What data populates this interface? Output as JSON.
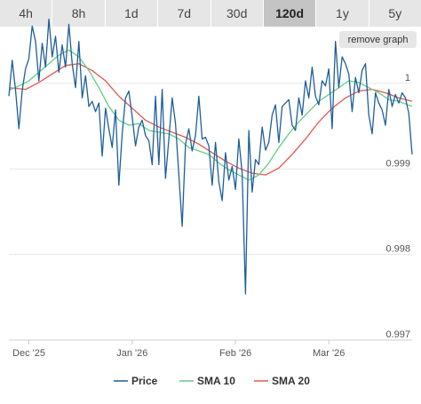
{
  "tabs": [
    {
      "label": "4h",
      "active": false
    },
    {
      "label": "8h",
      "active": false
    },
    {
      "label": "1d",
      "active": false
    },
    {
      "label": "7d",
      "active": false
    },
    {
      "label": "30d",
      "active": false
    },
    {
      "label": "120d",
      "active": true
    },
    {
      "label": "1y",
      "active": false
    },
    {
      "label": "5y",
      "active": false
    }
  ],
  "remove_graph_label": "remove graph",
  "chart_data": {
    "type": "line",
    "title": "",
    "xlabel": "",
    "ylabel": "",
    "ylim": [
      0.997,
      1.0003
    ],
    "yticks": [
      {
        "value": 1.0,
        "label": "1"
      },
      {
        "value": 0.999,
        "label": "0.999"
      },
      {
        "value": 0.998,
        "label": "0.998"
      },
      {
        "value": 0.997,
        "label": "0.997"
      }
    ],
    "x_start": "2025-11-25",
    "x_end": "2026-03-26",
    "xticks": [
      {
        "date": "2025-12-01",
        "label": "Dec '25"
      },
      {
        "date": "2026-01-01",
        "label": "Jan '26"
      },
      {
        "date": "2026-02-01",
        "label": "Feb '26"
      },
      {
        "date": "2026-03-01",
        "label": "Mar '26"
      }
    ],
    "grid": true,
    "legend_position": "bottom",
    "series": [
      {
        "name": "Price",
        "color": "#1f5e9a",
        "points": [
          [
            "2025-11-25",
            0.99985
          ],
          [
            "2025-11-26",
            1.00027
          ],
          [
            "2025-11-27",
            0.99992
          ],
          [
            "2025-11-28",
            0.99947
          ],
          [
            "2025-11-29",
            0.99992
          ],
          [
            "2025-11-30",
            1.00017
          ],
          [
            "2025-12-01",
            1.00029
          ],
          [
            "2025-12-02",
            1.00067
          ],
          [
            "2025-12-03",
            1.00049
          ],
          [
            "2025-12-04",
            1.00003
          ],
          [
            "2025-12-05",
            1.00047
          ],
          [
            "2025-12-06",
            1.00019
          ],
          [
            "2025-12-07",
            1.00075
          ],
          [
            "2025-12-08",
            1.00031
          ],
          [
            "2025-12-09",
            1.00055
          ],
          [
            "2025-12-10",
            1.00013
          ],
          [
            "2025-12-11",
            1.00045
          ],
          [
            "2025-12-12",
            1.00019
          ],
          [
            "2025-12-13",
            1.00069
          ],
          [
            "2025-12-14",
            1.00023
          ],
          [
            "2025-12-15",
            0.99995
          ],
          [
            "2025-12-16",
            1.00049
          ],
          [
            "2025-12-17",
            0.99983
          ],
          [
            "2025-12-18",
            1.00009
          ],
          [
            "2025-12-19",
            0.99973
          ],
          [
            "2025-12-20",
            0.99979
          ],
          [
            "2025-12-21",
            0.99967
          ],
          [
            "2025-12-22",
            0.99977
          ],
          [
            "2025-12-23",
            0.99915
          ],
          [
            "2025-12-24",
            0.99971
          ],
          [
            "2025-12-25",
            0.99947
          ],
          [
            "2025-12-26",
            0.99925
          ],
          [
            "2025-12-27",
            0.99969
          ],
          [
            "2025-12-28",
            0.99881
          ],
          [
            "2025-12-29",
            0.99941
          ],
          [
            "2025-12-30",
            0.99983
          ],
          [
            "2025-12-31",
            0.99991
          ],
          [
            "2026-01-01",
            0.99961
          ],
          [
            "2026-01-02",
            0.99927
          ],
          [
            "2026-01-03",
            0.99949
          ],
          [
            "2026-01-04",
            0.99957
          ],
          [
            "2026-01-05",
            0.99939
          ],
          [
            "2026-01-06",
            0.99933
          ],
          [
            "2026-01-07",
            0.99905
          ],
          [
            "2026-01-08",
            0.99985
          ],
          [
            "2026-01-09",
            0.99905
          ],
          [
            "2026-01-10",
            0.99993
          ],
          [
            "2026-01-11",
            0.99889
          ],
          [
            "2026-01-12",
            0.99935
          ],
          [
            "2026-01-13",
            0.99983
          ],
          [
            "2026-01-14",
            0.99953
          ],
          [
            "2026-01-15",
            0.99893
          ],
          [
            "2026-01-16",
            0.99833
          ],
          [
            "2026-01-17",
            0.99929
          ],
          [
            "2026-01-18",
            0.99947
          ],
          [
            "2026-01-19",
            0.99921
          ],
          [
            "2026-01-20",
            0.99939
          ],
          [
            "2026-01-21",
            0.99985
          ],
          [
            "2026-01-22",
            0.99935
          ],
          [
            "2026-01-23",
            0.99937
          ],
          [
            "2026-01-24",
            0.99927
          ],
          [
            "2026-01-25",
            0.99881
          ],
          [
            "2026-01-26",
            0.99931
          ],
          [
            "2026-01-27",
            0.99885
          ],
          [
            "2026-01-28",
            0.99863
          ],
          [
            "2026-01-29",
            0.99919
          ],
          [
            "2026-01-30",
            0.99887
          ],
          [
            "2026-01-31",
            0.99903
          ],
          [
            "2026-02-01",
            0.99876
          ],
          [
            "2026-02-02",
            0.99935
          ],
          [
            "2026-02-03",
            0.99895
          ],
          [
            "2026-02-04",
            0.99754
          ],
          [
            "2026-02-05",
            0.99945
          ],
          [
            "2026-02-06",
            0.99873
          ],
          [
            "2026-02-07",
            0.99911
          ],
          [
            "2026-02-08",
            0.99905
          ],
          [
            "2026-02-09",
            0.99949
          ],
          [
            "2026-02-10",
            0.99922
          ],
          [
            "2026-02-11",
            0.99931
          ],
          [
            "2026-02-12",
            0.99963
          ],
          [
            "2026-02-13",
            0.99975
          ],
          [
            "2026-02-14",
            0.99931
          ],
          [
            "2026-02-15",
            0.99973
          ],
          [
            "2026-02-16",
            0.99977
          ],
          [
            "2026-02-17",
            0.99981
          ],
          [
            "2026-02-18",
            0.99951
          ],
          [
            "2026-02-19",
            0.99945
          ],
          [
            "2026-02-20",
            0.99983
          ],
          [
            "2026-02-21",
            0.99963
          ],
          [
            "2026-02-22",
            1.00003
          ],
          [
            "2026-02-23",
            0.99983
          ],
          [
            "2026-02-24",
            1.00019
          ],
          [
            "2026-02-25",
            0.99985
          ],
          [
            "2026-02-26",
            0.99975
          ],
          [
            "2026-02-27",
            1.00003
          ],
          [
            "2026-02-28",
            0.99997
          ],
          [
            "2026-03-01",
            1.00017
          ],
          [
            "2026-03-02",
            0.99947
          ],
          [
            "2026-03-03",
            1.00049
          ],
          [
            "2026-03-04",
            0.99995
          ],
          [
            "2026-03-05",
            1.00031
          ],
          [
            "2026-03-06",
            1.00023
          ],
          [
            "2026-03-07",
            1.00011
          ],
          [
            "2026-03-08",
            0.99967
          ],
          [
            "2026-03-09",
            1.00007
          ],
          [
            "2026-03-10",
            0.99989
          ],
          [
            "2026-03-11",
            1.00015
          ],
          [
            "2026-03-12",
            1.00023
          ],
          [
            "2026-03-13",
            0.99963
          ],
          [
            "2026-03-14",
            0.99941
          ],
          [
            "2026-03-15",
            0.99989
          ],
          [
            "2026-03-16",
            0.99977
          ],
          [
            "2026-03-17",
            0.99969
          ],
          [
            "2026-03-18",
            0.99951
          ],
          [
            "2026-03-19",
            0.99993
          ],
          [
            "2026-03-20",
            0.99973
          ],
          [
            "2026-03-21",
            0.99987
          ],
          [
            "2026-03-22",
            0.99977
          ],
          [
            "2026-03-23",
            0.99989
          ],
          [
            "2026-03-24",
            0.99983
          ],
          [
            "2026-03-25",
            0.99965
          ],
          [
            "2026-03-26",
            0.99917
          ]
        ]
      },
      {
        "name": "SMA 10",
        "color": "#5fcf86",
        "points": [
          [
            "2025-11-25",
            0.99992
          ],
          [
            "2025-11-28",
            0.99997
          ],
          [
            "2025-12-01",
            1.00003
          ],
          [
            "2025-12-04",
            1.00013
          ],
          [
            "2025-12-07",
            1.00023
          ],
          [
            "2025-12-10",
            1.00033
          ],
          [
            "2025-12-13",
            1.00039
          ],
          [
            "2025-12-16",
            1.00031
          ],
          [
            "2025-12-19",
            1.00015
          ],
          [
            "2025-12-22",
            0.99995
          ],
          [
            "2025-12-25",
            0.99973
          ],
          [
            "2025-12-28",
            0.99957
          ],
          [
            "2025-12-31",
            0.99951
          ],
          [
            "2026-01-03",
            0.99953
          ],
          [
            "2026-01-06",
            0.99945
          ],
          [
            "2026-01-09",
            0.99943
          ],
          [
            "2026-01-12",
            0.99941
          ],
          [
            "2026-01-15",
            0.99935
          ],
          [
            "2026-01-18",
            0.99925
          ],
          [
            "2026-01-21",
            0.99921
          ],
          [
            "2026-01-24",
            0.99917
          ],
          [
            "2026-01-27",
            0.99907
          ],
          [
            "2026-01-30",
            0.99899
          ],
          [
            "2026-02-02",
            0.99893
          ],
          [
            "2026-02-05",
            0.99887
          ],
          [
            "2026-02-08",
            0.99893
          ],
          [
            "2026-02-11",
            0.99907
          ],
          [
            "2026-02-14",
            0.99925
          ],
          [
            "2026-02-17",
            0.99941
          ],
          [
            "2026-02-20",
            0.99955
          ],
          [
            "2026-02-23",
            0.99967
          ],
          [
            "2026-02-26",
            0.99979
          ],
          [
            "2026-03-01",
            0.99987
          ],
          [
            "2026-03-04",
            0.99995
          ],
          [
            "2026-03-07",
            1.00003
          ],
          [
            "2026-03-10",
            1.00001
          ],
          [
            "2026-03-13",
            0.99995
          ],
          [
            "2026-03-16",
            0.99989
          ],
          [
            "2026-03-19",
            0.99981
          ],
          [
            "2026-03-22",
            0.99979
          ],
          [
            "2026-03-26",
            0.99973
          ]
        ]
      },
      {
        "name": "SMA 20",
        "color": "#e2584e",
        "points": [
          [
            "2025-11-25",
            0.99995
          ],
          [
            "2025-11-30",
            0.99993
          ],
          [
            "2025-12-04",
            1.00001
          ],
          [
            "2025-12-08",
            1.00011
          ],
          [
            "2025-12-12",
            1.00021
          ],
          [
            "2025-12-16",
            1.00023
          ],
          [
            "2025-12-20",
            1.00015
          ],
          [
            "2025-12-24",
            1.00003
          ],
          [
            "2025-12-28",
            0.99985
          ],
          [
            "2026-01-01",
            0.99971
          ],
          [
            "2026-01-05",
            0.99957
          ],
          [
            "2026-01-09",
            0.99949
          ],
          [
            "2026-01-13",
            0.99943
          ],
          [
            "2026-01-17",
            0.99937
          ],
          [
            "2026-01-21",
            0.99929
          ],
          [
            "2026-01-25",
            0.99919
          ],
          [
            "2026-01-29",
            0.99909
          ],
          [
            "2026-02-02",
            0.99901
          ],
          [
            "2026-02-06",
            0.99895
          ],
          [
            "2026-02-10",
            0.99893
          ],
          [
            "2026-02-14",
            0.99901
          ],
          [
            "2026-02-18",
            0.99917
          ],
          [
            "2026-02-22",
            0.99935
          ],
          [
            "2026-02-26",
            0.99955
          ],
          [
            "2026-03-02",
            0.99971
          ],
          [
            "2026-03-06",
            0.99983
          ],
          [
            "2026-03-10",
            0.99991
          ],
          [
            "2026-03-14",
            0.99993
          ],
          [
            "2026-03-18",
            0.99989
          ],
          [
            "2026-03-22",
            0.99983
          ],
          [
            "2026-03-26",
            0.99979
          ]
        ]
      }
    ]
  }
}
